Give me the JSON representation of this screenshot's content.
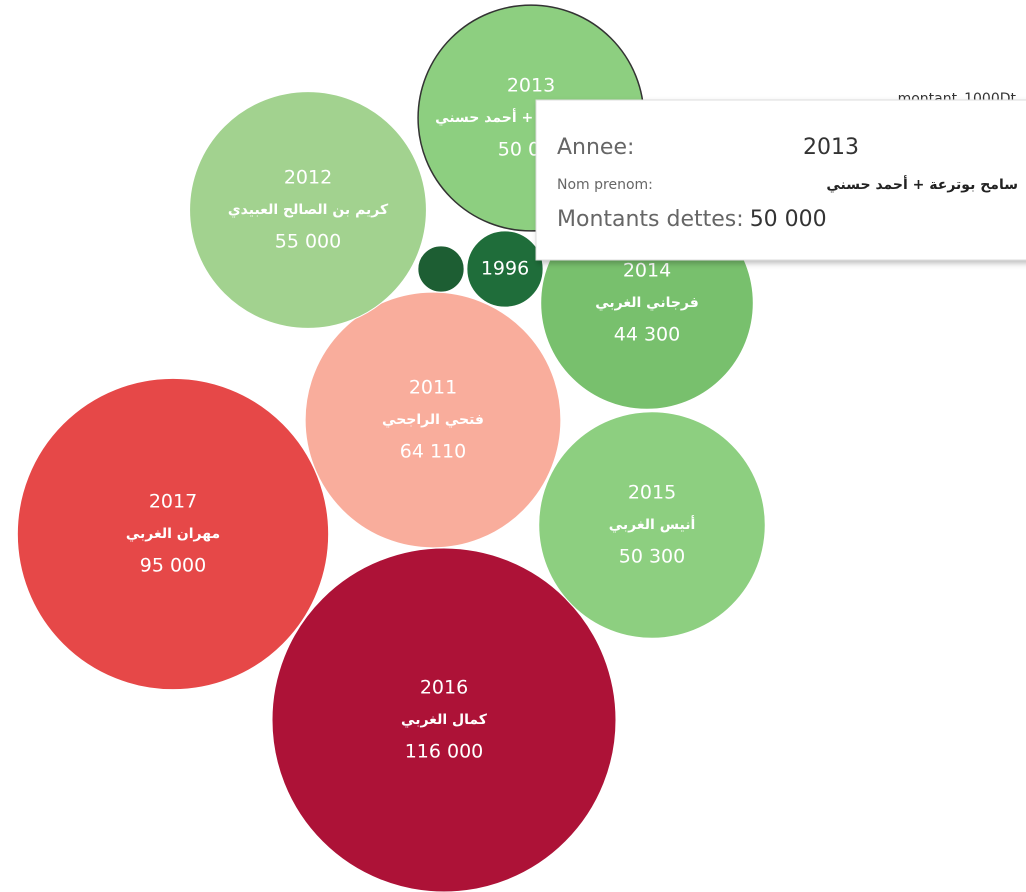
{
  "chart_data": {
    "type": "packed-bubble",
    "legend_title": "montant_1000Dt",
    "categories": [
      "2016",
      "2017",
      "2011",
      "2012",
      "2013",
      "2014",
      "2015",
      "1996",
      null
    ],
    "names": [
      "كمال الغربي",
      "مهران الغربي",
      "فتحي الراجحي",
      "كريم بن الصالح العبيدي",
      "سامح بوترعة + أحمد حسني",
      "فرجاني الغربي",
      "أنيس الغربي",
      null,
      null
    ],
    "values": [
      116000,
      95000,
      64110,
      55000,
      50000,
      44300,
      50300,
      5700,
      2100
    ],
    "value_labels": [
      "116 000",
      "95 000",
      "64 110",
      "55 000",
      "50 000",
      "44 300",
      "50 300",
      null,
      null
    ],
    "colors": [
      "#ad1237",
      "#e64848",
      "#f9ad9c",
      "#a2d28f",
      "#8dcf80",
      "#78c06d",
      "#8dcf80",
      "#1f6d3a",
      "#1d5e33"
    ],
    "tooltip": {
      "rows": [
        {
          "label": "Annee:",
          "value": "2013"
        },
        {
          "label": "Nom prenom:",
          "value": "سامح بوترعة + أحمد حسني"
        },
        {
          "label": "Montants dettes:",
          "value": "50 000"
        }
      ]
    }
  }
}
